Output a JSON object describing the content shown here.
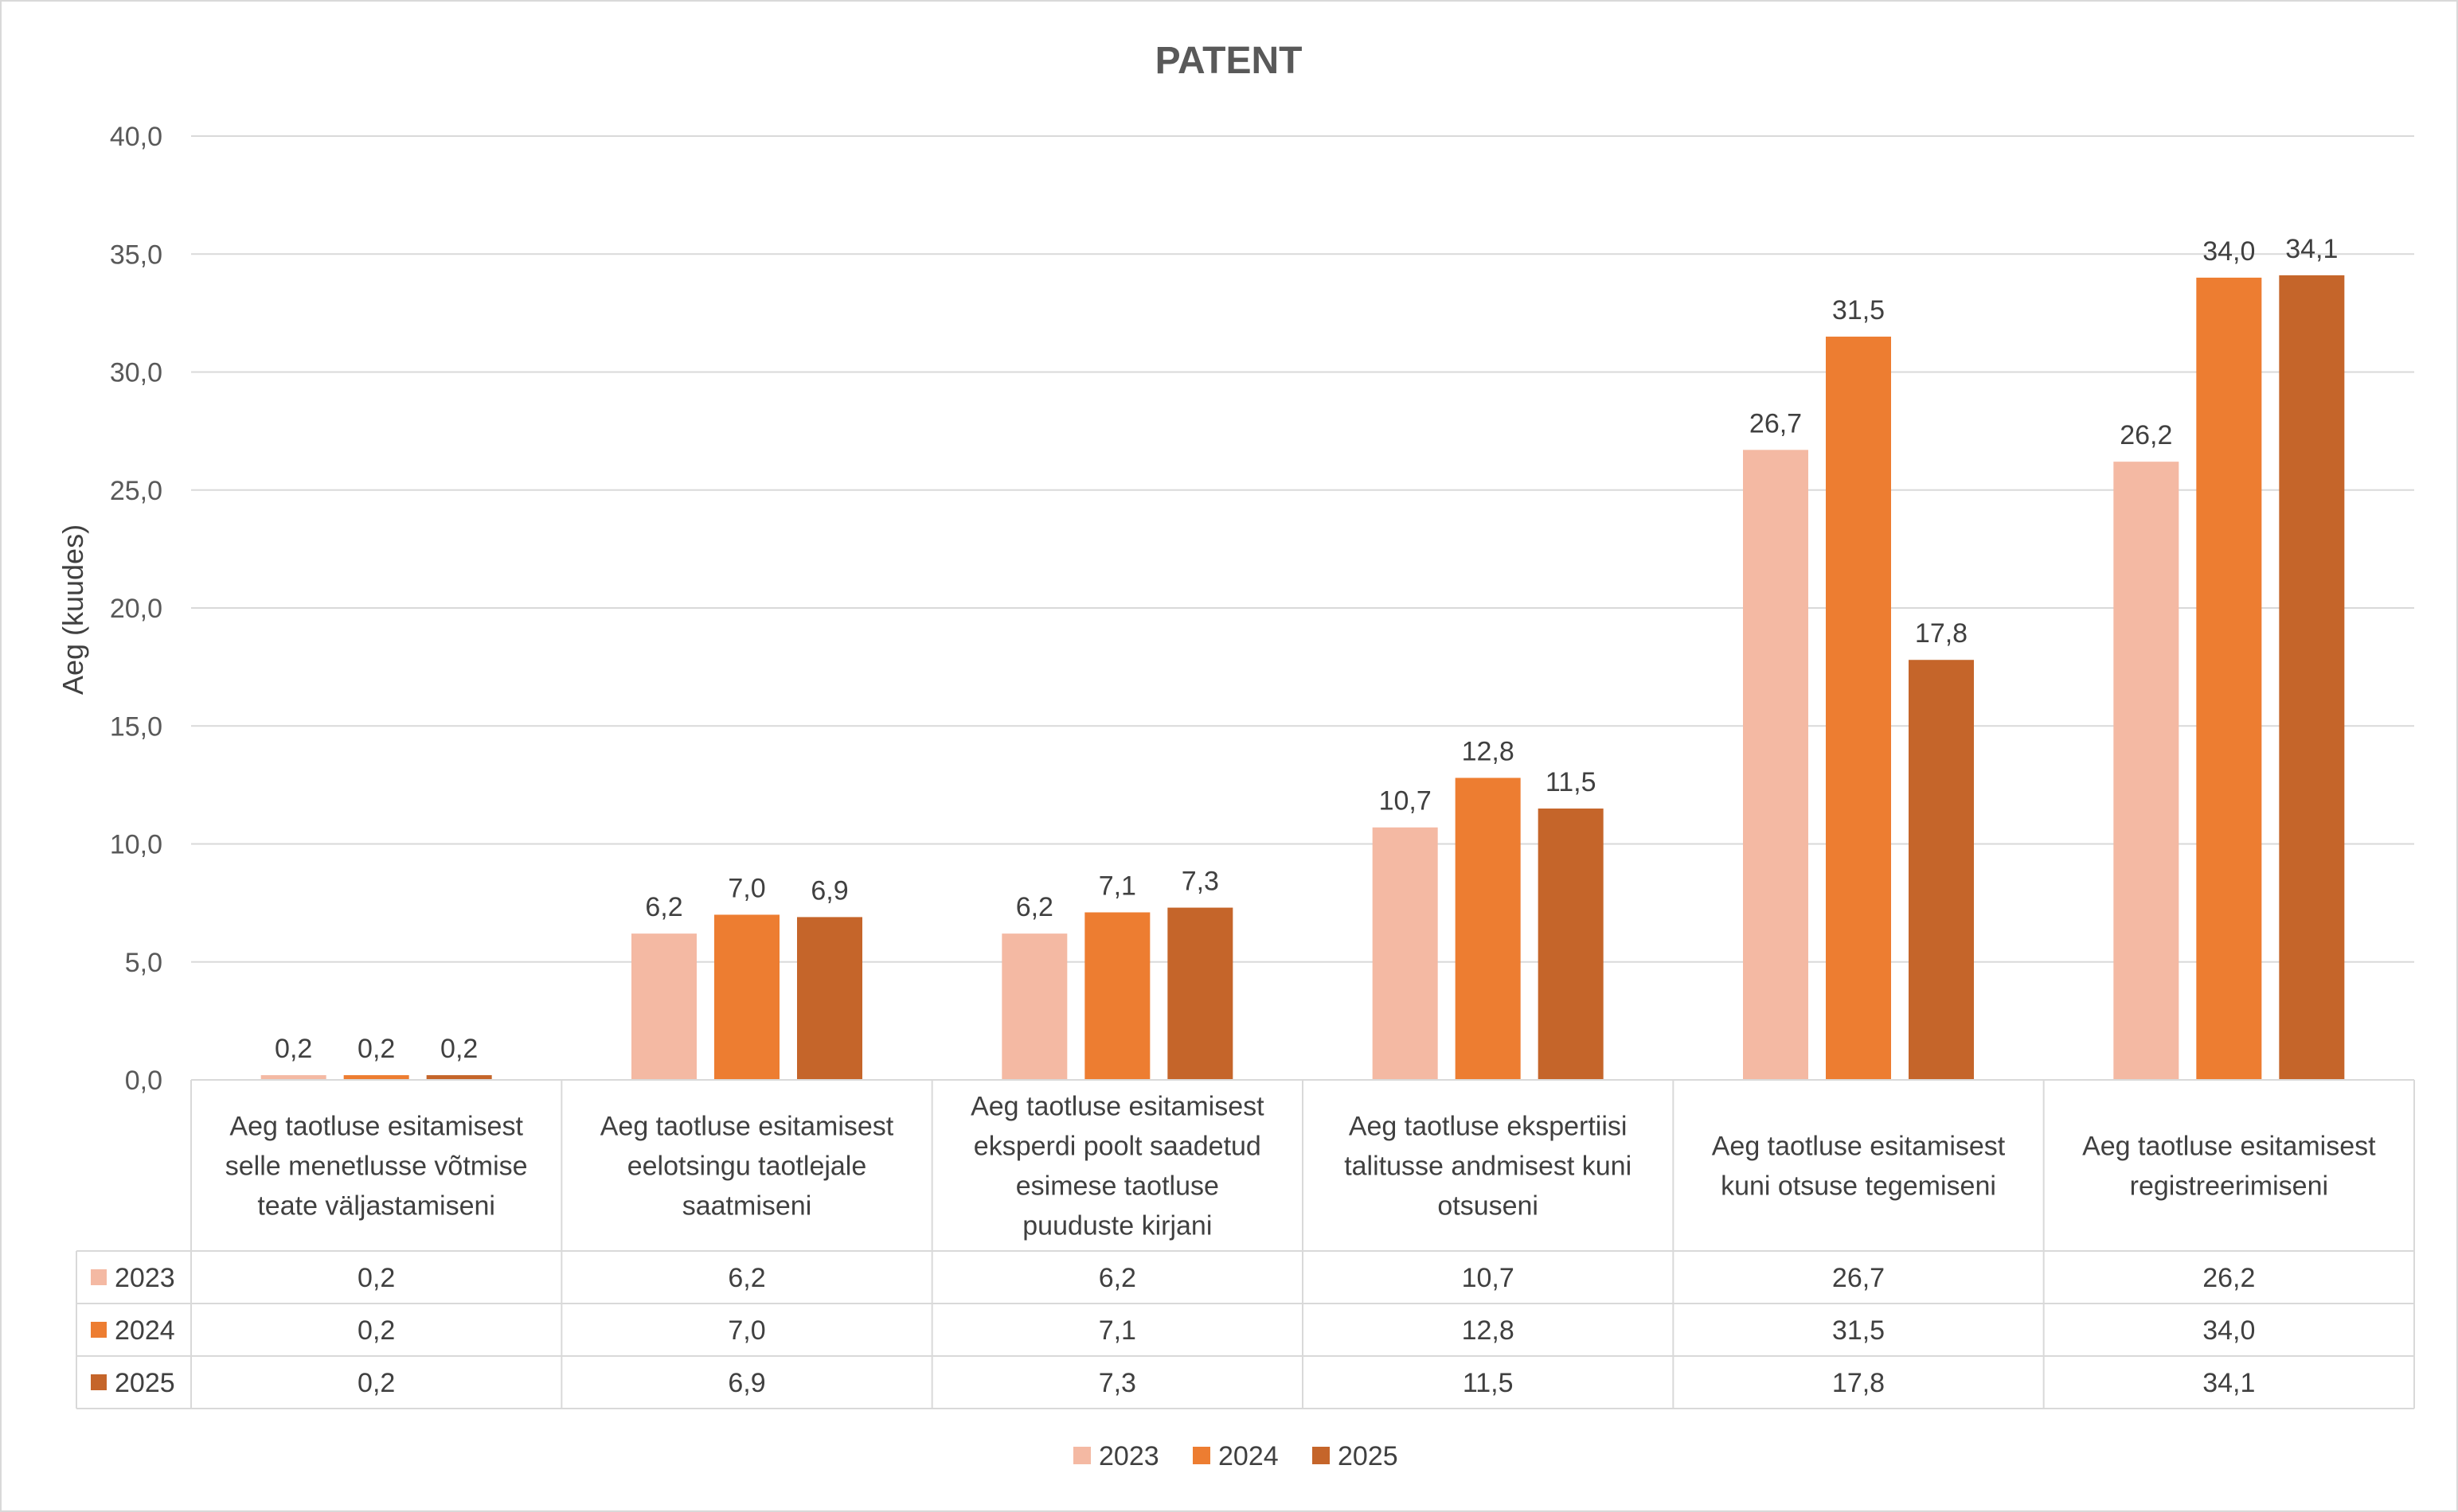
{
  "chart_data": {
    "type": "bar",
    "title": "PATENT",
    "ylabel": "Aeg (kuudes)",
    "xlabel": "",
    "ylim": [
      0,
      40
    ],
    "yticks": [
      "0,0",
      "5,0",
      "10,0",
      "15,0",
      "20,0",
      "25,0",
      "30,0",
      "35,0",
      "40,0"
    ],
    "grid": true,
    "legend_position": "bottom",
    "data_table": true,
    "categories": [
      "Aeg taotluse esitamisest selle menetlusse võtmise teate väljastamiseni",
      "Aeg taotluse esitamisest eelotsingu taotlejale saatmiseni",
      "Aeg taotluse esitamisest eksperdi poolt saadetud esimese taotluse puuduste kirjani",
      "Aeg taotluse ekspertiisi talitusse andmisest  kuni otsuseni",
      "Aeg taotluse esitamisest kuni otsuse tegemiseni",
      "Aeg taotluse esitamisest registreerimiseni"
    ],
    "category_lines": [
      [
        "Aeg taotluse esitamisest",
        "selle menetlusse võtmise",
        "teate väljastamiseni"
      ],
      [
        "Aeg taotluse esitamisest",
        "eelotsingu taotlejale",
        "saatmiseni"
      ],
      [
        "Aeg taotluse esitamisest",
        "eksperdi poolt saadetud",
        "esimese taotluse",
        "puuduste kirjani"
      ],
      [
        "Aeg taotluse ekspertiisi",
        "talitusse andmisest  kuni",
        "otsuseni"
      ],
      [
        "Aeg taotluse esitamisest",
        "kuni otsuse tegemiseni"
      ],
      [
        "Aeg taotluse esitamisest",
        "registreerimiseni"
      ]
    ],
    "series": [
      {
        "name": "2023",
        "color": "#F4B9A3",
        "values": [
          0.2,
          6.2,
          6.2,
          10.7,
          26.7,
          26.2
        ],
        "labels": [
          "0,2",
          "6,2",
          "6,2",
          "10,7",
          "26,7",
          "26,2"
        ]
      },
      {
        "name": "2024",
        "color": "#ED7D31",
        "values": [
          0.2,
          7.0,
          7.1,
          12.8,
          31.5,
          34.0
        ],
        "labels": [
          "0,2",
          "7,0",
          "7,1",
          "12,8",
          "31,5",
          "34,0"
        ]
      },
      {
        "name": "2025",
        "color": "#C5652A",
        "values": [
          0.2,
          6.9,
          7.3,
          11.5,
          17.8,
          34.1
        ],
        "labels": [
          "0,2",
          "6,9",
          "7,3",
          "11,5",
          "17,8",
          "34,1"
        ]
      }
    ]
  }
}
